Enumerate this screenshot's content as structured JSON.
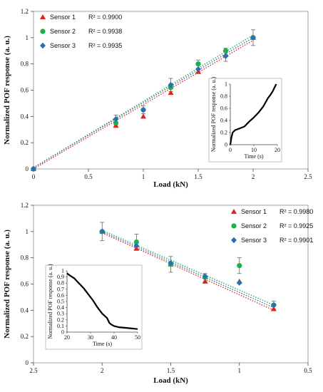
{
  "chart_data": [
    {
      "type": "scatter",
      "xlabel": "Load (kN)",
      "ylabel": "Normalized POF response (a. u.)",
      "xlim": [
        0,
        2.5
      ],
      "ylim": [
        0,
        1.2
      ],
      "xticks": [
        "0",
        "0.5",
        "1",
        "1.5",
        "2",
        "2.5"
      ],
      "yticks": [
        "0",
        "0.2",
        "0.4",
        "0.6",
        "0.8",
        "1",
        "1.2"
      ],
      "legend_position": "top-left",
      "series": [
        {
          "name": "Sensor 1",
          "r2": "R² = 0.9900",
          "color": "#e8201d",
          "marker": "triangle",
          "x": [
            0,
            0.75,
            1.0,
            1.25,
            1.5,
            1.75,
            2.0
          ],
          "y": [
            0,
            0.33,
            0.4,
            0.58,
            0.74,
            0.87,
            1.0
          ],
          "fit": [
            [
              0,
              0
            ],
            [
              2.0,
              0.98
            ]
          ]
        },
        {
          "name": "Sensor 2",
          "r2": "R² = 0.9938",
          "color": "#1fae4c",
          "marker": "circle",
          "x": [
            0,
            0.75,
            1.0,
            1.25,
            1.5,
            1.75,
            2.0
          ],
          "y": [
            0,
            0.35,
            0.45,
            0.62,
            0.8,
            0.9,
            1.0
          ],
          "fit": [
            [
              0,
              0.01
            ],
            [
              2.0,
              1.02
            ]
          ]
        },
        {
          "name": "Sensor 3",
          "r2": "R² = 0.9935",
          "color": "#2e6db3",
          "marker": "diamond",
          "x": [
            0,
            0.75,
            1.0,
            1.25,
            1.5,
            1.75,
            2.0
          ],
          "y": [
            0,
            0.38,
            0.45,
            0.64,
            0.76,
            0.86,
            1.0
          ],
          "fit": [
            [
              0,
              0.01
            ],
            [
              2.0,
              1.0
            ]
          ]
        }
      ],
      "error_bars": [
        {
          "x": 0.75,
          "y": 0.37,
          "err": 0.04
        },
        {
          "x": 1.0,
          "y": 0.45,
          "err": 0.03
        },
        {
          "x": 1.25,
          "y": 0.64,
          "err": 0.05
        },
        {
          "x": 1.5,
          "y": 0.78,
          "err": 0.05
        },
        {
          "x": 1.75,
          "y": 0.87,
          "err": 0.05
        },
        {
          "x": 2.0,
          "y": 1.0,
          "err": 0.06
        }
      ],
      "inset": {
        "type": "line",
        "xlabel": "Time (s)",
        "ylabel": "Normalized POF response (a. u.)",
        "xlim": [
          0,
          20
        ],
        "ylim": [
          0,
          1
        ],
        "xticks": [
          "0",
          "10",
          "20"
        ],
        "yticks": [
          "0",
          "0.2",
          "0.4",
          "0.6",
          "0.8",
          "1"
        ],
        "x": [
          0,
          0.5,
          1,
          2,
          4,
          6,
          8,
          10,
          12,
          14,
          15,
          16,
          17,
          18,
          19,
          19.5
        ],
        "y": [
          0,
          0.12,
          0.2,
          0.24,
          0.27,
          0.3,
          0.38,
          0.45,
          0.53,
          0.63,
          0.7,
          0.77,
          0.82,
          0.88,
          0.96,
          1.0
        ]
      }
    },
    {
      "type": "scatter",
      "xlabel": "Load (kN)",
      "ylabel": "Normalized POF response (a. u.)",
      "xlim": [
        2.5,
        0.5
      ],
      "ylim": [
        0,
        1.2
      ],
      "xticks": [
        "2.5",
        "2",
        "1.5",
        "1",
        "0.5"
      ],
      "yticks": [
        "0",
        "0.2",
        "0.4",
        "0.6",
        "0.8",
        "1",
        "1.2"
      ],
      "legend_position": "top-right",
      "series": [
        {
          "name": "Sensor 1",
          "r2": "R² = 0.9980",
          "color": "#e8201d",
          "marker": "triangle",
          "x": [
            2.0,
            1.75,
            1.5,
            1.25,
            1.0,
            0.75
          ],
          "y": [
            1.0,
            0.87,
            0.75,
            0.62,
            0.62,
            0.41
          ],
          "fit": [
            [
              2.0,
              0.99
            ],
            [
              0.75,
              0.4
            ]
          ]
        },
        {
          "name": "Sensor 2",
          "r2": "R² = 0.9925",
          "color": "#1fae4c",
          "marker": "circle",
          "x": [
            2.0,
            1.75,
            1.5,
            1.25,
            1.0,
            0.75
          ],
          "y": [
            1.0,
            0.92,
            0.75,
            0.65,
            0.74,
            0.44
          ],
          "fit": [
            [
              2.0,
              1.01
            ],
            [
              0.75,
              0.44
            ]
          ]
        },
        {
          "name": "Sensor 3",
          "r2": "R² = 0.9901",
          "color": "#2e6db3",
          "marker": "diamond",
          "x": [
            2.0,
            1.75,
            1.5,
            1.25,
            1.0,
            0.75
          ],
          "y": [
            1.0,
            0.89,
            0.76,
            0.66,
            0.61,
            0.44
          ],
          "fit": [
            [
              2.0,
              1.0
            ],
            [
              0.75,
              0.42
            ]
          ]
        }
      ],
      "error_bars": [
        {
          "x": 2.0,
          "y": 1.0,
          "err": 0.07
        },
        {
          "x": 1.75,
          "y": 0.92,
          "err": 0.06
        },
        {
          "x": 1.5,
          "y": 0.75,
          "err": 0.06
        },
        {
          "x": 1.25,
          "y": 0.65,
          "err": 0.03
        },
        {
          "x": 1.0,
          "y": 0.74,
          "err": 0.06
        },
        {
          "x": 0.75,
          "y": 0.44,
          "err": 0.03
        }
      ],
      "inset": {
        "type": "line",
        "xlabel": "Time (s)",
        "ylabel": "Normalized POF response (a. u.)",
        "xlim": [
          20,
          50
        ],
        "ylim": [
          0,
          1
        ],
        "xticks": [
          "20",
          "30",
          "40",
          "50"
        ],
        "yticks": [
          "0",
          "0.1",
          "0.2",
          "0.3",
          "0.4",
          "0.5",
          "0.6",
          "0.7",
          "0.8",
          "0.9",
          "1"
        ],
        "x": [
          20,
          21,
          23,
          25,
          27,
          29,
          31,
          33,
          35,
          37,
          38,
          39,
          40,
          42,
          45,
          50
        ],
        "y": [
          0.96,
          0.93,
          0.88,
          0.8,
          0.72,
          0.62,
          0.52,
          0.4,
          0.3,
          0.23,
          0.15,
          0.12,
          0.1,
          0.08,
          0.07,
          0.05
        ]
      }
    }
  ]
}
